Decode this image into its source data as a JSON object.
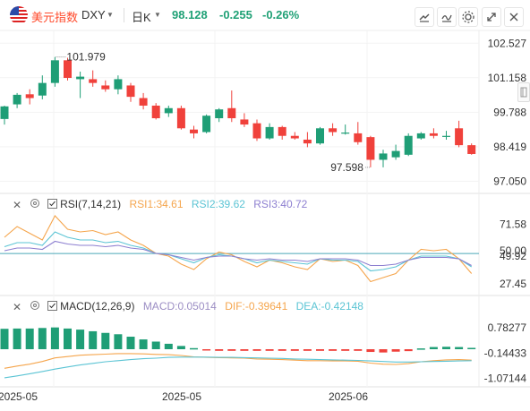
{
  "header": {
    "name": "美元指数",
    "symbol": "DXY",
    "timeframe": "日K",
    "price": "98.128",
    "change": "-0.255",
    "change_pct": "-0.26%"
  },
  "toolbar": {
    "draw_icon": "draw-icon",
    "indicator_icon": "indicator-icon",
    "settings_icon": "settings-icon",
    "fullscreen_icon": "fullscreen-icon",
    "close_icon": "close-icon"
  },
  "colors": {
    "up": "#1f9e76",
    "down": "#f0413b",
    "rsi1": "#f5a54c",
    "rsi2": "#5bc4d4",
    "rsi3": "#8d7fd0",
    "macd": "#9c8ec4",
    "dif": "#f5a54c",
    "dea": "#5bc4d4"
  },
  "rsi_legend": {
    "title": "RSI(7,14,21)",
    "rsi1": "RSI1:34.61",
    "rsi2": "RSI2:39.62",
    "rsi3": "RSI3:40.72"
  },
  "macd_legend": {
    "title": "MACD(12,26,9)",
    "macd": "MACD:0.05014",
    "dif": "DIF:-0.39641",
    "dea": "DEA:-0.42148"
  },
  "chart_data": [
    {
      "type": "candlestick",
      "title": "DXY 日K",
      "ylim": [
        96.85,
        102.75
      ],
      "y_ticks": [
        "102.527",
        "101.158",
        "99.788",
        "98.419",
        "97.050"
      ],
      "x_ticks": [
        "2025-05",
        "2025-05",
        "2025-06"
      ],
      "annotations": {
        "high": "101.979",
        "low": "97.598"
      },
      "candles": [
        {
          "o": 99.52,
          "h": 100.05,
          "l": 99.3,
          "c": 100.02
        },
        {
          "o": 100.1,
          "h": 100.55,
          "l": 99.95,
          "c": 100.48
        },
        {
          "o": 100.5,
          "h": 100.7,
          "l": 100.1,
          "c": 100.35
        },
        {
          "o": 100.45,
          "h": 101.25,
          "l": 100.3,
          "c": 100.95
        },
        {
          "o": 100.95,
          "h": 101.98,
          "l": 100.8,
          "c": 101.85
        },
        {
          "o": 101.85,
          "h": 101.95,
          "l": 101.05,
          "c": 101.15
        },
        {
          "o": 101.1,
          "h": 101.4,
          "l": 100.35,
          "c": 101.2
        },
        {
          "o": 101.1,
          "h": 101.45,
          "l": 100.8,
          "c": 100.95
        },
        {
          "o": 100.85,
          "h": 101.05,
          "l": 100.6,
          "c": 100.7
        },
        {
          "o": 100.7,
          "h": 101.25,
          "l": 100.5,
          "c": 101.1
        },
        {
          "o": 100.85,
          "h": 100.95,
          "l": 100.2,
          "c": 100.4
        },
        {
          "o": 100.35,
          "h": 100.55,
          "l": 99.9,
          "c": 100.05
        },
        {
          "o": 100.05,
          "h": 100.15,
          "l": 99.5,
          "c": 99.55
        },
        {
          "o": 99.75,
          "h": 100.05,
          "l": 99.6,
          "c": 99.95
        },
        {
          "o": 99.95,
          "h": 100.05,
          "l": 99.1,
          "c": 99.15
        },
        {
          "o": 99.1,
          "h": 99.25,
          "l": 98.75,
          "c": 98.95
        },
        {
          "o": 99.0,
          "h": 99.7,
          "l": 98.95,
          "c": 99.65
        },
        {
          "o": 99.55,
          "h": 99.95,
          "l": 99.4,
          "c": 99.9
        },
        {
          "o": 99.95,
          "h": 100.65,
          "l": 99.4,
          "c": 99.55
        },
        {
          "o": 99.5,
          "h": 99.75,
          "l": 99.2,
          "c": 99.3
        },
        {
          "o": 99.35,
          "h": 99.5,
          "l": 98.65,
          "c": 98.75
        },
        {
          "o": 98.75,
          "h": 99.35,
          "l": 98.7,
          "c": 99.2
        },
        {
          "o": 99.2,
          "h": 99.25,
          "l": 98.7,
          "c": 98.85
        },
        {
          "o": 98.85,
          "h": 99.0,
          "l": 98.7,
          "c": 98.75
        },
        {
          "o": 98.7,
          "h": 99.0,
          "l": 98.4,
          "c": 98.55
        },
        {
          "o": 98.55,
          "h": 99.2,
          "l": 98.5,
          "c": 99.15
        },
        {
          "o": 99.15,
          "h": 99.35,
          "l": 98.85,
          "c": 99.0
        },
        {
          "o": 98.95,
          "h": 99.3,
          "l": 98.9,
          "c": 98.98
        },
        {
          "o": 98.95,
          "h": 99.4,
          "l": 98.5,
          "c": 98.6
        },
        {
          "o": 98.8,
          "h": 98.85,
          "l": 97.6,
          "c": 97.9
        },
        {
          "o": 97.9,
          "h": 98.3,
          "l": 97.6,
          "c": 98.15
        },
        {
          "o": 98.0,
          "h": 98.5,
          "l": 97.9,
          "c": 98.25
        },
        {
          "o": 98.1,
          "h": 98.95,
          "l": 98.05,
          "c": 98.85
        },
        {
          "o": 98.75,
          "h": 99.0,
          "l": 98.7,
          "c": 98.95
        },
        {
          "o": 98.95,
          "h": 99.15,
          "l": 98.75,
          "c": 98.85
        },
        {
          "o": 98.85,
          "h": 99.05,
          "l": 98.7,
          "c": 98.85
        },
        {
          "o": 99.15,
          "h": 99.45,
          "l": 98.4,
          "c": 98.48
        },
        {
          "o": 98.48,
          "h": 98.55,
          "l": 98.1,
          "c": 98.13
        }
      ]
    },
    {
      "type": "line",
      "title": "RSI(7,14,21)",
      "ylim": [
        20,
        80
      ],
      "y_ticks": [
        "71.58",
        "50.00",
        "49.92",
        "27.45"
      ],
      "reference_line": 49.92,
      "series": [
        {
          "name": "RSI1",
          "values": [
            62,
            70,
            65,
            60,
            78,
            68,
            66,
            67,
            64,
            66,
            60,
            56,
            50,
            48,
            42,
            38,
            46,
            51,
            49,
            44,
            40,
            45,
            43,
            40,
            38,
            46,
            44,
            45,
            41,
            29,
            32,
            35,
            45,
            53,
            52,
            53,
            46,
            35
          ]
        },
        {
          "name": "RSI2",
          "values": [
            55,
            58,
            58,
            56,
            66,
            62,
            60,
            60,
            58,
            59,
            56,
            54,
            50,
            49,
            46,
            43,
            47,
            49,
            48,
            46,
            43,
            45,
            44,
            43,
            42,
            46,
            45,
            45,
            44,
            37,
            38,
            40,
            45,
            48,
            48,
            48,
            46,
            40
          ]
        },
        {
          "name": "RSI3",
          "values": [
            52,
            54,
            54,
            53,
            59,
            57,
            56,
            56,
            55,
            56,
            54,
            53,
            50,
            49,
            47,
            45,
            47,
            48,
            48,
            46,
            45,
            46,
            45,
            45,
            44,
            46,
            46,
            46,
            45,
            41,
            41,
            42,
            45,
            47,
            47,
            47,
            46,
            41
          ]
        }
      ]
    },
    {
      "type": "bar",
      "title": "MACD(12,26,9)",
      "ylim": [
        -1.25,
        1.25
      ],
      "y_ticks": [
        "0.78277",
        "-0.14433",
        "-1.07144"
      ],
      "series": [
        {
          "name": "MACD",
          "values": [
            0.75,
            0.76,
            0.76,
            0.78,
            0.8,
            0.76,
            0.72,
            0.66,
            0.6,
            0.55,
            0.46,
            0.36,
            0.28,
            0.2,
            0.12,
            0.04,
            -0.04,
            -0.06,
            -0.06,
            -0.06,
            -0.06,
            -0.06,
            -0.06,
            -0.06,
            -0.06,
            -0.06,
            -0.06,
            -0.06,
            -0.06,
            -0.1,
            -0.12,
            -0.09,
            -0.07,
            0.03,
            0.08,
            0.09,
            0.08,
            0.05
          ]
        },
        {
          "name": "DIF",
          "values": [
            -0.7,
            -0.62,
            -0.55,
            -0.45,
            -0.32,
            -0.27,
            -0.22,
            -0.2,
            -0.18,
            -0.16,
            -0.16,
            -0.17,
            -0.19,
            -0.2,
            -0.23,
            -0.28,
            -0.3,
            -0.31,
            -0.32,
            -0.33,
            -0.36,
            -0.37,
            -0.38,
            -0.4,
            -0.42,
            -0.42,
            -0.43,
            -0.43,
            -0.44,
            -0.51,
            -0.55,
            -0.56,
            -0.53,
            -0.46,
            -0.42,
            -0.39,
            -0.38,
            -0.4
          ]
        },
        {
          "name": "DEA",
          "values": [
            -1.05,
            -0.98,
            -0.9,
            -0.82,
            -0.73,
            -0.65,
            -0.58,
            -0.52,
            -0.46,
            -0.42,
            -0.38,
            -0.35,
            -0.33,
            -0.3,
            -0.29,
            -0.29,
            -0.29,
            -0.3,
            -0.3,
            -0.31,
            -0.32,
            -0.33,
            -0.34,
            -0.36,
            -0.37,
            -0.38,
            -0.39,
            -0.4,
            -0.41,
            -0.43,
            -0.45,
            -0.47,
            -0.47,
            -0.46,
            -0.45,
            -0.44,
            -0.43,
            -0.42
          ]
        }
      ]
    }
  ]
}
